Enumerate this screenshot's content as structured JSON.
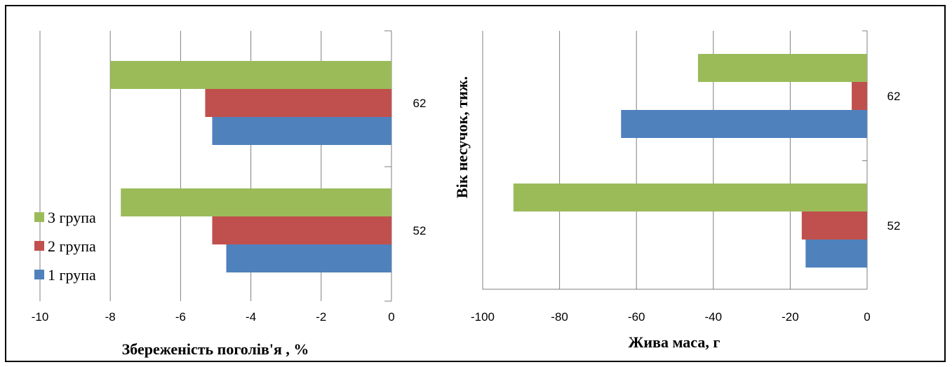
{
  "colors": {
    "series3": "#9bbb59",
    "series2": "#c0504d",
    "series1": "#4f81bd",
    "grid": "#7f7f7f"
  },
  "chart_data": [
    {
      "type": "bar",
      "orientation": "horizontal",
      "categories": [
        "52",
        "62"
      ],
      "series": [
        {
          "name": "1 група",
          "values": [
            -4.7,
            -5.1
          ]
        },
        {
          "name": "2 група",
          "values": [
            -5.1,
            -5.3
          ]
        },
        {
          "name": "3 група",
          "values": [
            -7.7,
            -8.0
          ]
        }
      ],
      "xlabel": "Збереженість поголів'я , %",
      "ylabel": "",
      "xlim": [
        -10,
        0
      ],
      "xticks": [
        "-10",
        "-8",
        "-6",
        "-4",
        "-2",
        "0"
      ],
      "grid": true,
      "legend_position": "bottom-left"
    },
    {
      "type": "bar",
      "orientation": "horizontal",
      "categories": [
        "52",
        "62"
      ],
      "series": [
        {
          "name": "1 група",
          "values": [
            -16,
            -64
          ]
        },
        {
          "name": "2 група",
          "values": [
            -17,
            -4
          ]
        },
        {
          "name": "3 група",
          "values": [
            -92,
            -44
          ]
        }
      ],
      "xlabel": "Жива маса, г",
      "ylabel": "Вік несучок, тиж.",
      "xlim": [
        -100,
        0
      ],
      "xticks": [
        "-100",
        "-80",
        "-60",
        "-40",
        "-20",
        "0"
      ],
      "grid": true,
      "legend_position": "none"
    }
  ]
}
